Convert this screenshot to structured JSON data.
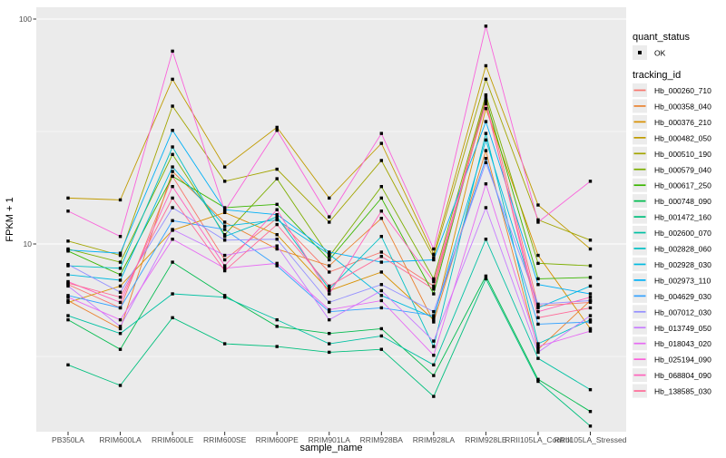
{
  "figure": {
    "panel_bg": "#EBEBEB",
    "grid_color": "#FFFFFF",
    "tick_label_color": "#4D4D4D",
    "point_color": "#000000"
  },
  "chart_data": {
    "type": "line",
    "title": "",
    "xlabel": "sample_name",
    "ylabel": "FPKM + 1",
    "y_scale": "log10",
    "y_ticks": [
      10,
      100
    ],
    "ylim": [
      1.45,
      112
    ],
    "grid": true,
    "legend_position": "right",
    "point_marker": "black-square",
    "categories": [
      "PB350LA",
      "RRIM600LA",
      "RRIM600LE",
      "RRIM600SE",
      "RRIM600PE",
      "RRIM901LA",
      "RRIM928BA",
      "RRIM928LA",
      "RRIM928LE",
      "RRII105LA_Control",
      "RRII105LA_Stressed"
    ],
    "series": [
      {
        "name": "Hb_000260_710",
        "color": "#F8766D",
        "values": [
          6.6,
          5.2,
          20,
          8.5,
          13,
          7.5,
          9.2,
          6.5,
          45,
          5.3,
          5.5
        ]
      },
      {
        "name": "Hb_000358_040",
        "color": "#EA8331",
        "values": [
          5.6,
          4.2,
          21,
          12.5,
          9.5,
          8.0,
          13,
          4.5,
          26,
          3.4,
          5.6
        ]
      },
      {
        "name": "Hb_000376_210",
        "color": "#D89000",
        "values": [
          5.5,
          6.5,
          11.5,
          13.8,
          11,
          6.2,
          7.5,
          4.6,
          40,
          8.9,
          4.2
        ]
      },
      {
        "name": "Hb_000482_050",
        "color": "#C09B00",
        "values": [
          16,
          15.7,
          54,
          22,
          33,
          16,
          28,
          9.0,
          62,
          14.9,
          9.5
        ]
      },
      {
        "name": "Hb_000510_190",
        "color": "#A3A500",
        "values": [
          10.3,
          8.9,
          41,
          19,
          21.5,
          12.5,
          23.5,
          8.7,
          54,
          12.8,
          10.4
        ]
      },
      {
        "name": "Hb_000579_040",
        "color": "#7CAE00",
        "values": [
          9.5,
          8.3,
          25,
          11,
          19.5,
          8.8,
          18,
          7.0,
          46,
          8.2,
          8.0
        ]
      },
      {
        "name": "Hb_000617_250",
        "color": "#39B600",
        "values": [
          9.3,
          7.3,
          20,
          14.5,
          15,
          8.5,
          16,
          6.0,
          44,
          7.0,
          7.1
        ]
      },
      {
        "name": "Hb_000748_090",
        "color": "#00BB4E",
        "values": [
          4.6,
          3.4,
          8.3,
          5.9,
          4.3,
          4.0,
          4.2,
          2.6,
          7.2,
          2.5,
          1.8
        ]
      },
      {
        "name": "Hb_001472_160",
        "color": "#00BF7D",
        "values": [
          2.9,
          2.35,
          4.7,
          3.6,
          3.5,
          3.3,
          3.4,
          2.1,
          7.0,
          2.45,
          1.55
        ]
      },
      {
        "name": "Hb_002600_070",
        "color": "#00C1A3",
        "values": [
          4.8,
          4.0,
          6.0,
          5.8,
          4.6,
          3.6,
          3.9,
          2.9,
          10.5,
          3.1,
          2.25
        ]
      },
      {
        "name": "Hb_002828_060",
        "color": "#00BFC4",
        "values": [
          8.0,
          7.8,
          27,
          10.8,
          13.2,
          6.3,
          10.8,
          3.5,
          31,
          3.6,
          4.6
        ]
      },
      {
        "name": "Hb_002928_030",
        "color": "#00BAE0",
        "values": [
          7.3,
          6.9,
          22,
          12,
          12.8,
          9.0,
          5.9,
          4.7,
          29,
          5.2,
          6.5
        ]
      },
      {
        "name": "Hb_002973_110",
        "color": "#00B0F6",
        "values": [
          9.4,
          9.1,
          32,
          14.2,
          13.5,
          9.2,
          8.3,
          8.5,
          35,
          6.6,
          6.0
        ]
      },
      {
        "name": "Hb_004629_030",
        "color": "#35A2FF",
        "values": [
          5.9,
          5.2,
          12.7,
          11.6,
          8.0,
          5.0,
          5.2,
          4.8,
          24,
          4.4,
          4.5
        ]
      },
      {
        "name": "Hb_007012_030",
        "color": "#9590FF",
        "values": [
          8.1,
          6.1,
          14.5,
          10.4,
          10.5,
          5.5,
          6.6,
          5.0,
          23,
          5.4,
          5.6
        ]
      },
      {
        "name": "Hb_013749_050",
        "color": "#C77CFF",
        "values": [
          6.5,
          4.3,
          11.6,
          8.9,
          9.8,
          4.6,
          6.2,
          3.7,
          14.5,
          3.3,
          4.8
        ]
      },
      {
        "name": "Hb_018043_020",
        "color": "#E76BF3",
        "values": [
          5.8,
          4.6,
          10.5,
          7.8,
          8.2,
          5.1,
          5.6,
          3.2,
          18.5,
          3.5,
          4.1
        ]
      },
      {
        "name": "Hb_025194_090",
        "color": "#FA62DB",
        "values": [
          14,
          10.8,
          72,
          14,
          32,
          13.2,
          31,
          9.5,
          93,
          12.5,
          19
        ]
      },
      {
        "name": "Hb_068804_090",
        "color": "#FF62BC",
        "values": [
          6.8,
          5.5,
          18,
          8.0,
          14.2,
          6.0,
          14,
          6.8,
          42,
          5.0,
          5.8
        ]
      },
      {
        "name": "Hb_138585_030",
        "color": "#FF6A98",
        "values": [
          6.7,
          5.8,
          16,
          7.6,
          12.2,
          6.5,
          8.8,
          6.3,
          43,
          4.7,
          5.2
        ]
      }
    ]
  },
  "legend": {
    "quant_title": "quant_status",
    "quant_items": [
      {
        "label": "OK",
        "marker": "black-square"
      }
    ],
    "tracking_title": "tracking_id"
  }
}
